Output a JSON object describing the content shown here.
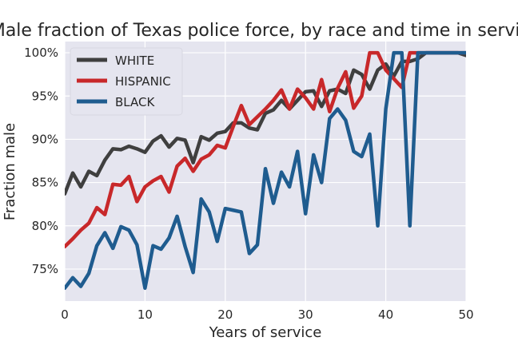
{
  "chart_data": {
    "type": "line",
    "title": "Male fraction of Texas police force, by race and time in service",
    "xlabel": "Years of service",
    "ylabel": "Fraction male",
    "xlim": [
      0,
      50
    ],
    "ylim": [
      0.713,
      1.013
    ],
    "x_ticks": [
      0,
      10,
      20,
      30,
      40,
      50
    ],
    "y_ticks": [
      0.75,
      0.8,
      0.85,
      0.9,
      0.95,
      1.0
    ],
    "x_tick_labels": [
      "0",
      "10",
      "20",
      "30",
      "40",
      "50"
    ],
    "y_tick_labels": [
      "75%",
      "80%",
      "85%",
      "90%",
      "95%",
      "100%"
    ],
    "grid": true,
    "legend_position": "top-left",
    "background_color": "#e5e5ef",
    "x": [
      0,
      1,
      2,
      3,
      4,
      5,
      6,
      7,
      8,
      9,
      10,
      11,
      12,
      13,
      14,
      15,
      16,
      17,
      18,
      19,
      20,
      21,
      22,
      23,
      24,
      25,
      26,
      27,
      28,
      29,
      30,
      31,
      32,
      33,
      34,
      35,
      36,
      37,
      38,
      39,
      40,
      41,
      42,
      43,
      44,
      45,
      46,
      47,
      48,
      49,
      50
    ],
    "series": [
      {
        "name": "WHITE",
        "color": "#3f3f3f",
        "values": [
          0.837,
          0.861,
          0.845,
          0.863,
          0.858,
          0.876,
          0.889,
          0.888,
          0.892,
          0.889,
          0.885,
          0.898,
          0.904,
          0.891,
          0.901,
          0.899,
          0.873,
          0.903,
          0.899,
          0.907,
          0.909,
          0.919,
          0.919,
          0.913,
          0.911,
          0.93,
          0.934,
          0.945,
          0.935,
          0.945,
          0.955,
          0.956,
          0.938,
          0.956,
          0.958,
          0.953,
          0.98,
          0.975,
          0.958,
          0.98,
          0.987,
          0.973,
          0.99,
          0.99,
          0.993,
          1.0,
          1.0,
          1.0,
          1.0,
          1.0,
          0.997
        ]
      },
      {
        "name": "HISPANIC",
        "color": "#c8282a",
        "values": [
          0.776,
          0.785,
          0.795,
          0.803,
          0.821,
          0.813,
          0.848,
          0.847,
          0.857,
          0.828,
          0.845,
          0.852,
          0.857,
          0.839,
          0.869,
          0.878,
          0.863,
          0.877,
          0.882,
          0.893,
          0.89,
          0.915,
          0.939,
          0.917,
          0.926,
          0.935,
          0.945,
          0.957,
          0.935,
          0.958,
          0.948,
          0.935,
          0.969,
          0.932,
          0.959,
          0.978,
          0.936,
          0.95,
          1.0,
          1.0,
          0.98,
          0.97,
          0.96,
          1.0,
          1.0,
          1.0,
          1.0,
          1.0,
          1.0,
          1.0,
          1.0
        ]
      },
      {
        "name": "BLACK",
        "color": "#1f5c8f",
        "values": [
          0.728,
          0.74,
          0.73,
          0.745,
          0.777,
          0.792,
          0.774,
          0.799,
          0.795,
          0.778,
          0.728,
          0.777,
          0.773,
          0.786,
          0.811,
          0.776,
          0.746,
          0.831,
          0.816,
          0.782,
          0.82,
          0.818,
          0.816,
          0.768,
          0.778,
          0.866,
          0.826,
          0.862,
          0.845,
          0.886,
          0.814,
          0.882,
          0.85,
          0.924,
          0.935,
          0.922,
          0.886,
          0.88,
          0.906,
          0.8,
          0.935,
          1.0,
          1.0,
          0.8,
          1.0,
          1.0,
          1.0,
          1.0,
          1.0,
          1.0,
          1.0
        ]
      }
    ]
  }
}
